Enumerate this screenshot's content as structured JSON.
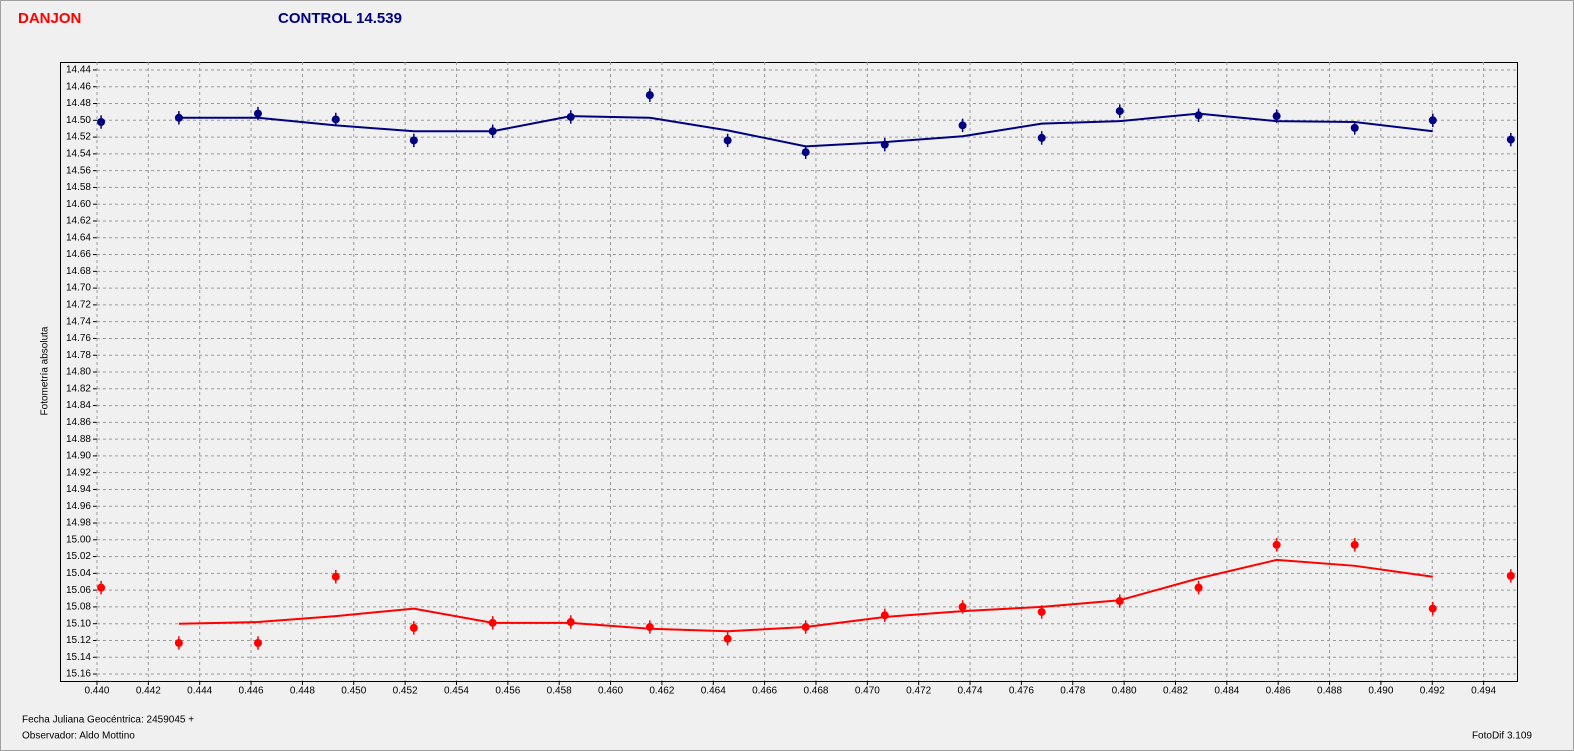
{
  "chart_data": {
    "type": "scatter",
    "y_label": "Fotometría absoluta",
    "footer": [
      "Fecha Juliana Geocéntrica: 2459045 +",
      "Observador: Aldo Mottino"
    ],
    "version": "FotoDif 3.109",
    "x": [
      0.44016,
      0.44319,
      0.44627,
      0.4493,
      0.45234,
      0.45541,
      0.45845,
      0.46153,
      0.46456,
      0.4676,
      0.47068,
      0.47371,
      0.47679,
      0.47983,
      0.4829,
      0.48594,
      0.48898,
      0.49202,
      0.49506
    ],
    "series": [
      {
        "name": "DANJON",
        "color": "#ff0000",
        "error": 0.008,
        "values": [
          15.057,
          15.123,
          15.123,
          15.044,
          15.105,
          15.099,
          15.098,
          15.104,
          15.118,
          15.104,
          15.09,
          15.08,
          15.086,
          15.073,
          15.057,
          15.006,
          15.006,
          15.082,
          15.043
        ],
        "fit": [
          null,
          15.1,
          15.098,
          15.091,
          15.082,
          15.099,
          15.099,
          15.106,
          15.109,
          15.104,
          15.092,
          15.085,
          15.08,
          15.072,
          15.046,
          15.024,
          15.031,
          15.044,
          null
        ]
      },
      {
        "name": "CONTROL 14.539",
        "color": "#000080",
        "error": 0.008,
        "values": [
          14.502,
          14.497,
          14.492,
          14.499,
          14.524,
          14.513,
          14.496,
          14.47,
          14.524,
          14.538,
          14.529,
          14.506,
          14.521,
          14.489,
          14.494,
          14.495,
          14.509,
          14.5,
          14.523
        ],
        "fit": [
          null,
          14.497,
          14.497,
          14.506,
          14.513,
          14.513,
          14.495,
          14.497,
          14.512,
          14.531,
          14.526,
          14.519,
          14.504,
          14.501,
          14.492,
          14.501,
          14.502,
          14.513,
          null
        ]
      }
    ],
    "xlim": [
      0.43856,
      0.4953
    ],
    "ylim": [
      14.4305,
      15.1683
    ],
    "y_inverted": true,
    "grid": true,
    "xticks": [
      {
        "value": 0.44,
        "label": "0.440"
      },
      0.442,
      0.444,
      0.446,
      0.448,
      {
        "value": 0.45,
        "label": "0.450"
      },
      0.452,
      0.454,
      0.456,
      0.458,
      {
        "value": 0.46,
        "label": "0.460"
      },
      0.462,
      0.464,
      0.466,
      0.468,
      {
        "value": 0.47,
        "label": "0.470"
      },
      0.472,
      0.474,
      0.476,
      0.478,
      {
        "value": 0.48,
        "label": "0.480"
      },
      0.482,
      0.484,
      0.486,
      0.488,
      {
        "value": 0.49,
        "label": "0.490"
      },
      0.492,
      0.494
    ],
    "yticks": [
      14.44,
      14.46,
      14.48,
      {
        "value": 14.5,
        "label": "14.50"
      },
      14.52,
      14.54,
      14.56,
      14.58,
      {
        "value": 14.6,
        "label": "14.60"
      },
      14.62,
      14.64,
      14.66,
      14.68,
      {
        "value": 14.7,
        "label": "14.70"
      },
      14.72,
      14.74,
      14.76,
      14.78,
      {
        "value": 14.8,
        "label": "14.80"
      },
      14.82,
      14.84,
      14.86,
      14.88,
      {
        "value": 14.9,
        "label": "14.90"
      },
      14.92,
      14.94,
      14.96,
      14.98,
      {
        "value": 15,
        "label": "15.00"
      },
      15.02,
      15.04,
      15.06,
      15.08,
      {
        "value": 15.1,
        "label": "15.10"
      },
      15.12,
      15.14,
      15.16
    ]
  }
}
